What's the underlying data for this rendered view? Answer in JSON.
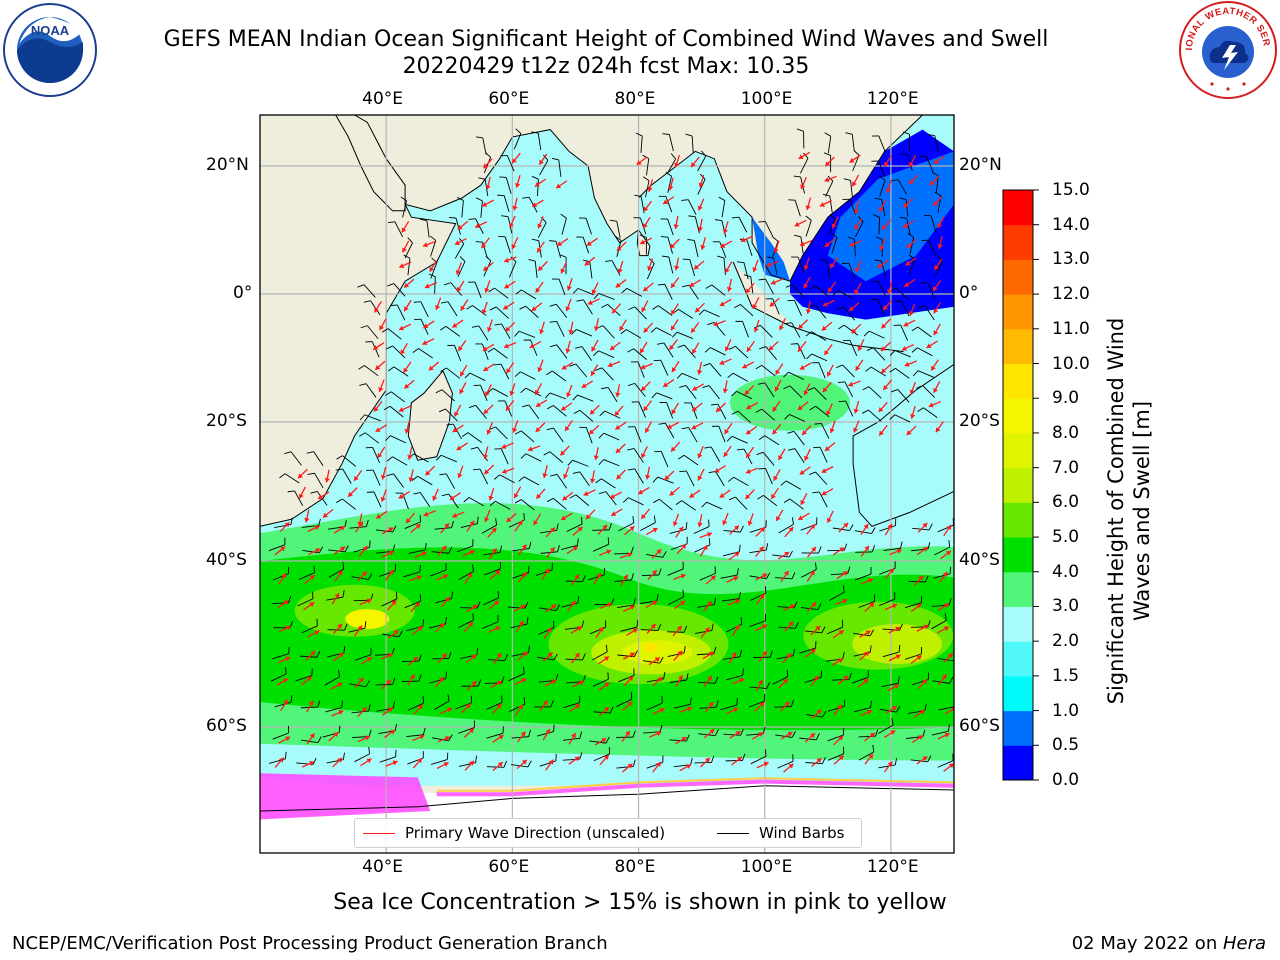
{
  "header": {
    "title": "GEFS MEAN Indian Ocean Significant Height of Combined Wind Waves and Swell",
    "subtitle": "20220429 t12z 024h fcst   Max: 10.35"
  },
  "logos": {
    "left": {
      "name": "noaa-logo",
      "text": "NOAA"
    },
    "right": {
      "name": "national-weather-service-logo",
      "text": "NATIONAL WEATHER SERVICE"
    }
  },
  "map": {
    "region": "Indian Ocean",
    "lon_range": [
      20,
      130
    ],
    "lat_range": [
      -75,
      27
    ],
    "lon_ticks": [
      "40°E",
      "60°E",
      "80°E",
      "100°E",
      "120°E"
    ],
    "lat_ticks_left": [
      "20°N",
      "0°",
      "20°S",
      "40°S",
      "60°S"
    ],
    "lat_ticks_right": [
      "20°N",
      "0°",
      "20°S",
      "40°S",
      "60°S"
    ],
    "gridlines": true,
    "colors": {
      "land": "#efeedd",
      "ocean_base": "#a8fbfb",
      "coastline": "#000000",
      "wave_direction": "#ff1a1a",
      "wind_barb": "#000000",
      "ice": "#ff44ff"
    }
  },
  "colorbar": {
    "title": "Significant Height of Combined Wind Waves and Swell [m]",
    "ticks": [
      "15.0",
      "14.0",
      "13.0",
      "12.0",
      "11.0",
      "10.0",
      "9.0",
      "8.0",
      "7.0",
      "6.0",
      "5.0",
      "4.0",
      "3.0",
      "2.0",
      "1.5",
      "1.0",
      "0.5",
      "0.0"
    ],
    "bands": [
      {
        "from": 0.0,
        "to": 0.5,
        "color": "#0000ff"
      },
      {
        "from": 0.5,
        "to": 1.0,
        "color": "#0070ff"
      },
      {
        "from": 1.0,
        "to": 1.5,
        "color": "#00fafa"
      },
      {
        "from": 1.5,
        "to": 2.0,
        "color": "#50f8f8"
      },
      {
        "from": 2.0,
        "to": 3.0,
        "color": "#a8fbfb"
      },
      {
        "from": 3.0,
        "to": 4.0,
        "color": "#50f57a"
      },
      {
        "from": 4.0,
        "to": 5.0,
        "color": "#00e000"
      },
      {
        "from": 5.0,
        "to": 6.0,
        "color": "#66e800"
      },
      {
        "from": 6.0,
        "to": 7.0,
        "color": "#bef000"
      },
      {
        "from": 7.0,
        "to": 8.0,
        "color": "#dff500"
      },
      {
        "from": 8.0,
        "to": 9.0,
        "color": "#f5f500"
      },
      {
        "from": 9.0,
        "to": 10.0,
        "color": "#ffe600"
      },
      {
        "from": 10.0,
        "to": 11.0,
        "color": "#ffbb00"
      },
      {
        "from": 11.0,
        "to": 12.0,
        "color": "#ff9500"
      },
      {
        "from": 12.0,
        "to": 13.0,
        "color": "#ff6a00"
      },
      {
        "from": 13.0,
        "to": 14.0,
        "color": "#ff3c00"
      },
      {
        "from": 14.0,
        "to": 15.0,
        "color": "#ff0000"
      }
    ]
  },
  "legend": {
    "wave_direction": "Primary Wave Direction (unscaled)",
    "wind_barbs": "Wind Barbs"
  },
  "caption": "Sea Ice Concentration > 15% is shown in pink to yellow",
  "footer": {
    "left": "NCEP/EMC/Verification Post Processing Product Generation Branch",
    "right_date": "02 May 2022 on ",
    "right_host": "Hera"
  }
}
